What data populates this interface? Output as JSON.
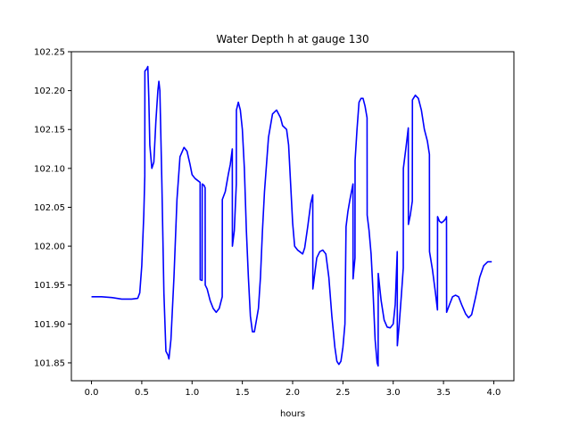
{
  "chart_data": {
    "type": "line",
    "title": "Water Depth h at gauge 130",
    "xlabel": "hours",
    "ylabel": "",
    "xlim": [
      -0.2,
      4.2
    ],
    "ylim": [
      101.827,
      102.25
    ],
    "xticks": [
      0.0,
      0.5,
      1.0,
      1.5,
      2.0,
      2.5,
      3.0,
      3.5,
      4.0
    ],
    "xtick_labels": [
      "0.0",
      "0.5",
      "1.0",
      "1.5",
      "2.0",
      "2.5",
      "3.0",
      "3.5",
      "4.0"
    ],
    "yticks": [
      101.85,
      101.9,
      101.95,
      102.0,
      102.05,
      102.1,
      102.15,
      102.2,
      102.25
    ],
    "ytick_labels": [
      "101.85",
      "101.90",
      "101.95",
      "102.00",
      "102.05",
      "102.10",
      "102.15",
      "102.20",
      "102.25"
    ],
    "grid": false,
    "series": [
      {
        "color": "#0000ff",
        "points": [
          [
            0.0,
            101.935
          ],
          [
            0.1,
            101.935
          ],
          [
            0.2,
            101.934
          ],
          [
            0.3,
            101.932
          ],
          [
            0.4,
            101.932
          ],
          [
            0.46,
            101.933
          ],
          [
            0.48,
            101.94
          ],
          [
            0.5,
            101.975
          ],
          [
            0.52,
            102.04
          ],
          [
            0.53,
            102.09
          ],
          [
            0.531,
            102.225
          ],
          [
            0.55,
            102.228
          ],
          [
            0.56,
            102.231
          ],
          [
            0.57,
            102.19
          ],
          [
            0.58,
            102.13
          ],
          [
            0.6,
            102.1
          ],
          [
            0.62,
            102.108
          ],
          [
            0.64,
            102.16
          ],
          [
            0.66,
            102.2
          ],
          [
            0.67,
            102.212
          ],
          [
            0.68,
            102.2
          ],
          [
            0.7,
            102.08
          ],
          [
            0.72,
            101.94
          ],
          [
            0.74,
            101.865
          ],
          [
            0.76,
            101.86
          ],
          [
            0.77,
            101.855
          ],
          [
            0.79,
            101.88
          ],
          [
            0.82,
            101.96
          ],
          [
            0.85,
            102.06
          ],
          [
            0.88,
            102.115
          ],
          [
            0.92,
            102.127
          ],
          [
            0.95,
            102.122
          ],
          [
            0.98,
            102.105
          ],
          [
            1.0,
            102.092
          ],
          [
            1.03,
            102.087
          ],
          [
            1.06,
            102.084
          ],
          [
            1.08,
            102.082
          ],
          [
            1.081,
            101.957
          ],
          [
            1.1,
            101.956
          ],
          [
            1.101,
            102.08
          ],
          [
            1.12,
            102.078
          ],
          [
            1.13,
            102.075
          ],
          [
            1.131,
            101.95
          ],
          [
            1.15,
            101.945
          ],
          [
            1.18,
            101.93
          ],
          [
            1.21,
            101.92
          ],
          [
            1.24,
            101.915
          ],
          [
            1.27,
            101.92
          ],
          [
            1.3,
            101.935
          ],
          [
            1.301,
            102.06
          ],
          [
            1.33,
            102.07
          ],
          [
            1.36,
            102.092
          ],
          [
            1.38,
            102.105
          ],
          [
            1.4,
            102.125
          ],
          [
            1.401,
            102.0
          ],
          [
            1.42,
            102.02
          ],
          [
            1.44,
            102.08
          ],
          [
            1.441,
            102.175
          ],
          [
            1.46,
            102.185
          ],
          [
            1.48,
            102.175
          ],
          [
            1.5,
            102.15
          ],
          [
            1.52,
            102.1
          ],
          [
            1.54,
            102.02
          ],
          [
            1.56,
            101.96
          ],
          [
            1.58,
            101.91
          ],
          [
            1.6,
            101.89
          ],
          [
            1.62,
            101.89
          ],
          [
            1.64,
            101.905
          ],
          [
            1.66,
            101.92
          ],
          [
            1.68,
            101.96
          ],
          [
            1.7,
            102.02
          ],
          [
            1.72,
            102.07
          ],
          [
            1.76,
            102.14
          ],
          [
            1.8,
            102.17
          ],
          [
            1.84,
            102.175
          ],
          [
            1.86,
            102.17
          ],
          [
            1.88,
            102.165
          ],
          [
            1.9,
            102.155
          ],
          [
            1.94,
            102.15
          ],
          [
            1.96,
            102.13
          ],
          [
            1.98,
            102.08
          ],
          [
            2.0,
            102.03
          ],
          [
            2.02,
            102.0
          ],
          [
            2.05,
            101.995
          ],
          [
            2.07,
            101.993
          ],
          [
            2.1,
            101.99
          ],
          [
            2.12,
            101.998
          ],
          [
            2.15,
            102.025
          ],
          [
            2.18,
            102.055
          ],
          [
            2.2,
            102.066
          ],
          [
            2.201,
            101.945
          ],
          [
            2.22,
            101.965
          ],
          [
            2.24,
            101.985
          ],
          [
            2.27,
            101.993
          ],
          [
            2.3,
            101.995
          ],
          [
            2.33,
            101.99
          ],
          [
            2.36,
            101.96
          ],
          [
            2.39,
            101.91
          ],
          [
            2.42,
            101.87
          ],
          [
            2.44,
            101.852
          ],
          [
            2.46,
            101.848
          ],
          [
            2.48,
            101.852
          ],
          [
            2.5,
            101.87
          ],
          [
            2.52,
            101.9
          ],
          [
            2.531,
            102.025
          ],
          [
            2.55,
            102.045
          ],
          [
            2.57,
            102.06
          ],
          [
            2.6,
            102.08
          ],
          [
            2.601,
            101.958
          ],
          [
            2.62,
            101.985
          ],
          [
            2.621,
            102.11
          ],
          [
            2.64,
            102.15
          ],
          [
            2.66,
            102.185
          ],
          [
            2.68,
            102.19
          ],
          [
            2.7,
            102.19
          ],
          [
            2.72,
            102.18
          ],
          [
            2.74,
            102.165
          ],
          [
            2.741,
            102.04
          ],
          [
            2.76,
            102.02
          ],
          [
            2.78,
            101.99
          ],
          [
            2.8,
            101.94
          ],
          [
            2.82,
            101.88
          ],
          [
            2.84,
            101.85
          ],
          [
            2.85,
            101.846
          ],
          [
            2.851,
            101.965
          ],
          [
            2.88,
            101.93
          ],
          [
            2.91,
            101.905
          ],
          [
            2.94,
            101.896
          ],
          [
            2.97,
            101.895
          ],
          [
            3.0,
            101.9
          ],
          [
            3.02,
            101.925
          ],
          [
            3.04,
            101.993
          ],
          [
            3.041,
            101.872
          ],
          [
            3.06,
            101.9
          ],
          [
            3.08,
            101.935
          ],
          [
            3.1,
            101.972
          ],
          [
            3.101,
            102.1
          ],
          [
            3.13,
            102.13
          ],
          [
            3.15,
            102.152
          ],
          [
            3.151,
            102.028
          ],
          [
            3.17,
            102.04
          ],
          [
            3.19,
            102.058
          ],
          [
            3.191,
            102.188
          ],
          [
            3.22,
            102.194
          ],
          [
            3.25,
            102.19
          ],
          [
            3.28,
            102.175
          ],
          [
            3.31,
            102.15
          ],
          [
            3.34,
            102.135
          ],
          [
            3.36,
            102.118
          ],
          [
            3.361,
            101.993
          ],
          [
            3.39,
            101.97
          ],
          [
            3.42,
            101.94
          ],
          [
            3.44,
            101.918
          ],
          [
            3.441,
            102.038
          ],
          [
            3.46,
            102.032
          ],
          [
            3.48,
            102.03
          ],
          [
            3.5,
            102.032
          ],
          [
            3.52,
            102.035
          ],
          [
            3.53,
            102.038
          ],
          [
            3.531,
            101.915
          ],
          [
            3.56,
            101.925
          ],
          [
            3.59,
            101.935
          ],
          [
            3.62,
            101.937
          ],
          [
            3.65,
            101.935
          ],
          [
            3.68,
            101.925
          ],
          [
            3.72,
            101.913
          ],
          [
            3.75,
            101.908
          ],
          [
            3.78,
            101.912
          ],
          [
            3.82,
            101.935
          ],
          [
            3.86,
            101.96
          ],
          [
            3.9,
            101.975
          ],
          [
            3.94,
            101.98
          ],
          [
            3.98,
            101.98
          ]
        ]
      }
    ]
  }
}
